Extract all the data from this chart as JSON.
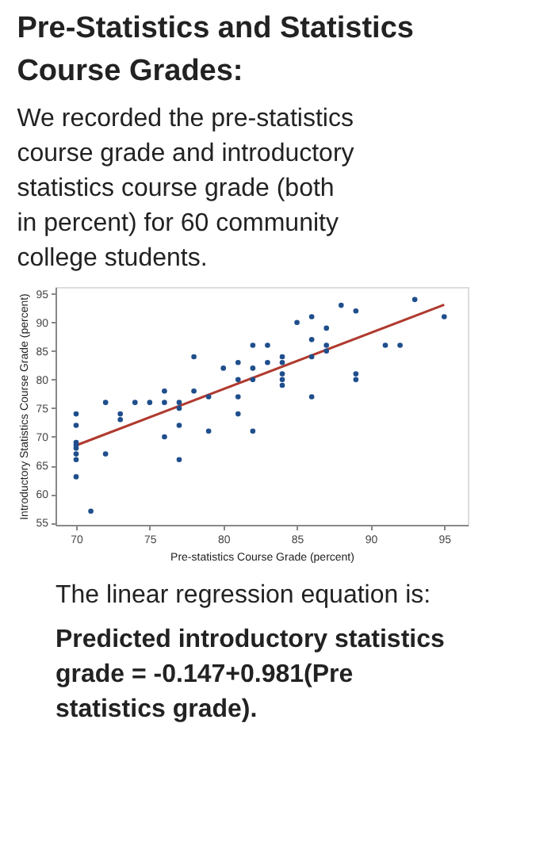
{
  "chart_data": {
    "type": "scatter",
    "title": "Pre-Statistics and Statistics Course Grades:",
    "subtitle": "We recorded the pre-statistics course grade and introductory statistics course grade (both in percent) for 60 community college students.",
    "xlabel": "Pre-statistics Course Grade (percent)",
    "ylabel": "Introductory Statistics Course Grade (percent)",
    "xlim": [
      68.6,
      96.6
    ],
    "ylim": [
      54.6,
      96.2
    ],
    "xticks": [
      70,
      75,
      80,
      85,
      90,
      95
    ],
    "yticks": [
      55,
      60,
      65,
      70,
      75,
      80,
      85,
      90,
      95
    ],
    "grid": false,
    "series": [
      {
        "color": "#1f4e8c",
        "marker": "circle",
        "x": [
          70,
          70,
          70,
          70,
          70,
          70,
          70,
          70,
          71,
          72,
          72,
          73,
          73,
          74,
          75,
          76,
          76,
          76,
          77,
          77,
          77,
          77,
          78,
          78,
          79,
          79,
          80,
          81,
          81,
          81,
          81,
          82,
          82,
          82,
          82,
          83,
          83,
          84,
          84,
          84,
          84,
          84,
          85,
          86,
          86,
          86,
          86,
          87,
          87,
          87,
          88,
          89,
          89,
          89,
          91,
          92,
          93,
          95
        ],
        "values": [
          74,
          72,
          69,
          68.5,
          68,
          67,
          66,
          63,
          57,
          76,
          67,
          74,
          73,
          76,
          76,
          78,
          76,
          70,
          76,
          75,
          72,
          66,
          84,
          78,
          77,
          71,
          82,
          83,
          80,
          77,
          74,
          86,
          82,
          80,
          71,
          86,
          83,
          84,
          83,
          81,
          80,
          79,
          90,
          91,
          87,
          84,
          77,
          89,
          86,
          85,
          93,
          92,
          81,
          80,
          86,
          86,
          94,
          91
        ]
      },
      {
        "type": "line",
        "color": "#b03a2e",
        "marker": "none",
        "line_style": "solid",
        "x": [
          70,
          95
        ],
        "values": [
          68.5,
          93.1
        ]
      }
    ],
    "annotations": [
      "The linear regression equation is:",
      "Predicted introductory statistics grade = -0.147+0.981(Pre statistics grade)."
    ]
  }
}
